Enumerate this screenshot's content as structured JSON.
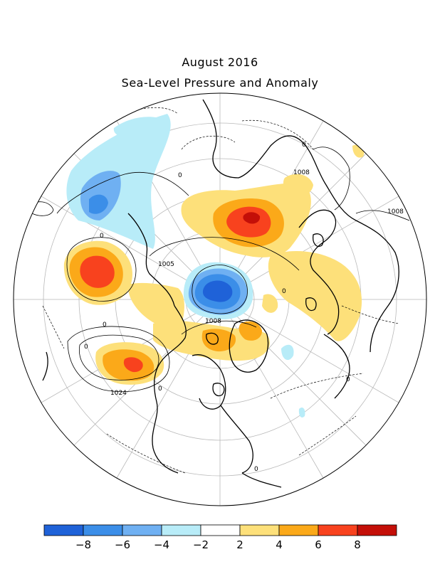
{
  "title": "August 2016",
  "subtitle": "Sea-Level Pressure and Anomaly",
  "colorbar": {
    "colors": [
      "#1f62d8",
      "#3b8ee8",
      "#6fb0f2",
      "#b8ecf8",
      "#ffffff",
      "#fde07a",
      "#fba919",
      "#f8421e",
      "#c40f08"
    ],
    "labels": [
      "-8",
      "-6",
      "-4",
      "-2",
      "2",
      "4",
      "6",
      "8"
    ]
  },
  "contour_labels": [
    "1008",
    "1008",
    "1005",
    "1008",
    "1024",
    "0",
    "0",
    "0",
    "0",
    "0",
    "0",
    "0",
    "0",
    "0"
  ],
  "anomalies": [
    {
      "sign": "negative",
      "peak": -9,
      "region": "North Pole"
    },
    {
      "sign": "negative",
      "peak": -5,
      "region": "North Pacific"
    },
    {
      "sign": "positive",
      "peak": 8,
      "region": "Barents / Kara Sea"
    },
    {
      "sign": "positive",
      "peak": 7,
      "region": "Gulf of Alaska"
    },
    {
      "sign": "positive",
      "peak": 7,
      "region": "Eastern North Pacific"
    },
    {
      "sign": "positive",
      "peak": 5,
      "region": "Greenland"
    }
  ]
}
